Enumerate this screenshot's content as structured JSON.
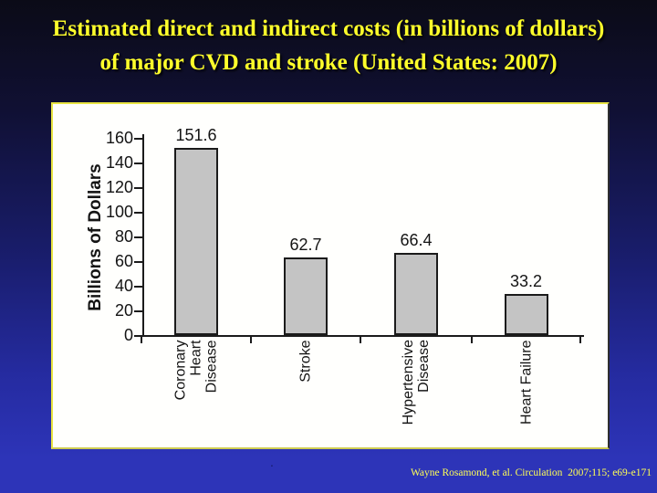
{
  "title": {
    "line1": "Estimated direct and indirect costs (in billions of dollars)",
    "line2": "of major CVD and stroke (United States: 2007)"
  },
  "citation": "Wayne Rosamond, et al. Circulation  2007;115; e69-e171",
  "stray_mark": ".",
  "chart_data": {
    "type": "bar",
    "title": "",
    "xlabel": "",
    "ylabel": "Billions of Dollars",
    "categories": [
      "Coronary Heart Disease",
      "Stroke",
      "Hypertensive Disease",
      "Heart Failure"
    ],
    "category_lines": [
      [
        "Coronary",
        "Heart",
        "Disease"
      ],
      [
        "Stroke"
      ],
      [
        "Hypertensive",
        "Disease"
      ],
      [
        "Heart Failure"
      ]
    ],
    "values": [
      151.6,
      62.7,
      66.4,
      33.2
    ],
    "value_labels": [
      "151.6",
      "62.7",
      "66.4",
      "33.2"
    ],
    "ylim": [
      0,
      160
    ],
    "yticks": [
      0,
      20,
      40,
      60,
      80,
      100,
      120,
      140,
      160
    ],
    "grid": false,
    "legend": "none",
    "bar_fill": "#c4c4c4",
    "bar_stroke": "#1b1b1b",
    "axis_color": "#1b1b1b"
  },
  "colors": {
    "background_top": "#0b0b17",
    "background_bottom": "#2d34b8",
    "title_text": "#ffff2b",
    "citation_text": "#ffff55",
    "panel_bg": "#fffffd",
    "panel_border": "#e8e443"
  }
}
